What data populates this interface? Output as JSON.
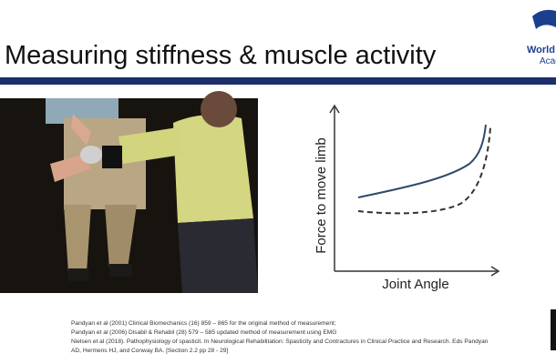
{
  "slide": {
    "title": "Measuring stiffness & muscle activity",
    "logo": {
      "line1": "World",
      "line2": "Acad"
    },
    "diagram": {
      "y_label": "Force to move limb",
      "x_label": "Joint Angle"
    },
    "references": [
      "Pandyan et al (2001) Clinical Biomechanics (16) 859 – 865 for the original method of measurement;",
      "Pandyan et al (2006) Disabil & Rehabil (28) 579 – 585 updated method of measurement using EMG",
      "Nielsen et al (2018). Pathophysiology of spasticit. In Neurological Rehabilitation: Spasticity and Contractures in Clinical Practice and Research. Eds Pandyan",
      "AD, Hermens HJ, and Conway BA. [Section 2.2 pp 28 - 29]"
    ]
  }
}
